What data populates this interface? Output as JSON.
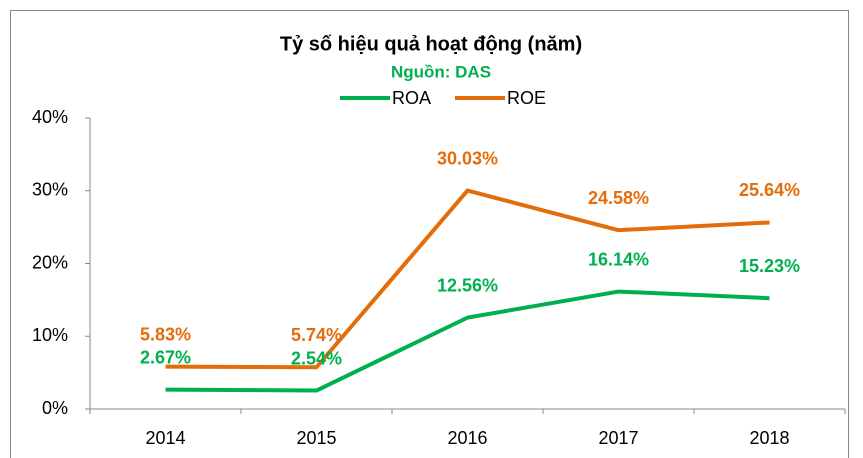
{
  "chart_data": {
    "type": "line",
    "title": "Tỷ số hiệu quả hoạt động (năm)",
    "subtitle": "Nguồn: DAS",
    "categories": [
      "2014",
      "2015",
      "2016",
      "2017",
      "2018"
    ],
    "series": [
      {
        "name": "ROA",
        "color": "#00b050",
        "values": [
          2.67,
          2.54,
          12.56,
          16.14,
          15.23
        ],
        "value_labels": [
          "2.67%",
          "2.54%",
          "12.56%",
          "16.14%",
          "15.23%"
        ]
      },
      {
        "name": "ROE",
        "color": "#e46c0a",
        "values": [
          5.83,
          5.74,
          30.03,
          24.58,
          25.64
        ],
        "value_labels": [
          "5.83%",
          "5.74%",
          "30.03%",
          "24.58%",
          "25.64%"
        ]
      }
    ],
    "ylim": [
      0,
      40
    ],
    "yticks": [
      {
        "value": 0,
        "label": "0%"
      },
      {
        "value": 10,
        "label": "10%"
      },
      {
        "value": 20,
        "label": "20%"
      },
      {
        "value": 30,
        "label": "30%"
      },
      {
        "value": 40,
        "label": "40%"
      }
    ],
    "grid": false,
    "legend": "top"
  }
}
